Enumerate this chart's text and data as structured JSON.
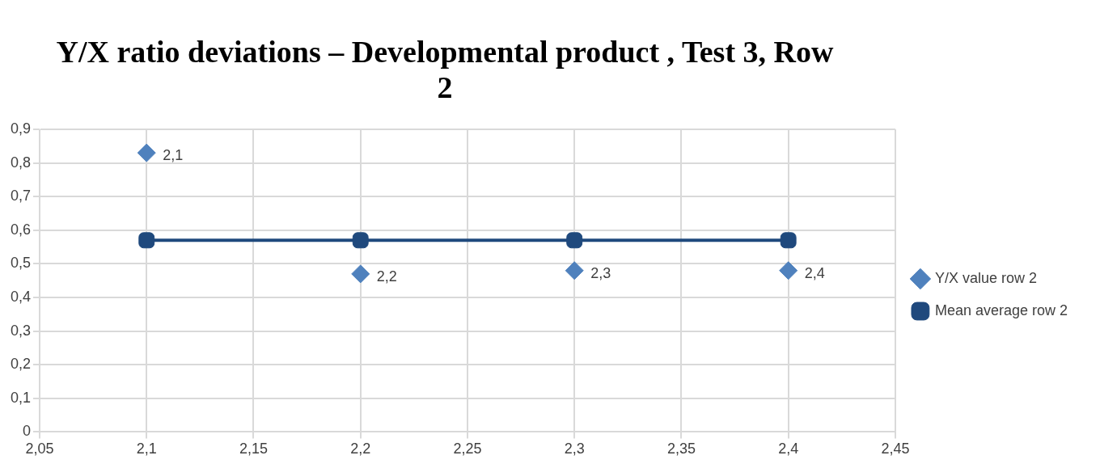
{
  "chart_data": {
    "type": "scatter",
    "title": "Y/X ratio deviations – Developmental product , Test 3, Row 2",
    "series": [
      {
        "name": "Y/X value row 2",
        "color": "#4f81bd",
        "marker": "diamond",
        "x": [
          2.1,
          2.2,
          2.3,
          2.4
        ],
        "values": [
          0.83,
          0.47,
          0.48,
          0.48
        ]
      },
      {
        "name": "Mean average row 2",
        "type": "line",
        "color": "#1f497d",
        "marker": "square",
        "line_style": "solid",
        "x": [
          2.1,
          2.2,
          2.3,
          2.4
        ],
        "values": [
          0.57,
          0.57,
          0.57,
          0.57
        ]
      }
    ],
    "xlim": [
      2.05,
      2.45
    ],
    "xticks": [
      {
        "value": 2.05,
        "label": "2,05"
      },
      {
        "value": 2.1,
        "label": "2,1"
      },
      {
        "value": 2.15,
        "label": "2,15"
      },
      {
        "value": 2.2,
        "label": "2,2"
      },
      {
        "value": 2.25,
        "label": "2,25"
      },
      {
        "value": 2.3,
        "label": "2,3"
      },
      {
        "value": 2.35,
        "label": "2,35"
      },
      {
        "value": 2.4,
        "label": "2,4"
      },
      {
        "value": 2.45,
        "label": "2,45"
      }
    ],
    "ylim": [
      0,
      0.9
    ],
    "yticks": [
      0,
      {
        "value": 0.1,
        "label": "0,1"
      },
      {
        "value": 0.2,
        "label": "0,2"
      },
      {
        "value": 0.3,
        "label": "0,3"
      },
      {
        "value": 0.4,
        "label": "0,4"
      },
      {
        "value": 0.5,
        "label": "0,5"
      },
      {
        "value": 0.6,
        "label": "0,6"
      },
      {
        "value": 0.7,
        "label": "0,7"
      },
      {
        "value": 0.8,
        "label": "0,8"
      },
      {
        "value": 0.9,
        "label": "0,9"
      }
    ],
    "annotations": [
      {
        "text": "2,1",
        "x": 2.1,
        "y": 0.83
      },
      {
        "text": "2,2",
        "x": 2.2,
        "y": 0.47
      },
      {
        "text": "2,3",
        "x": 2.3,
        "y": 0.48
      },
      {
        "text": "2,4",
        "x": 2.4,
        "y": 0.48
      }
    ],
    "grid": true,
    "legend": "right"
  }
}
